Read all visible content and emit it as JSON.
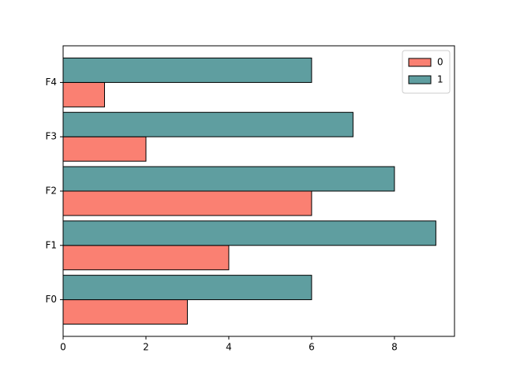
{
  "chart_data": {
    "type": "barh",
    "categories": [
      "F0",
      "F1",
      "F2",
      "F3",
      "F4"
    ],
    "series": [
      {
        "name": "0",
        "color": "#fa8072",
        "values": [
          3,
          4,
          6,
          2,
          1
        ]
      },
      {
        "name": "1",
        "color": "#5f9ea0",
        "values": [
          6,
          9,
          8,
          7,
          6
        ]
      }
    ],
    "xlim": [
      0,
      9.45
    ],
    "xticks": [
      0,
      2,
      4,
      6,
      8
    ],
    "legend": "upper right"
  }
}
